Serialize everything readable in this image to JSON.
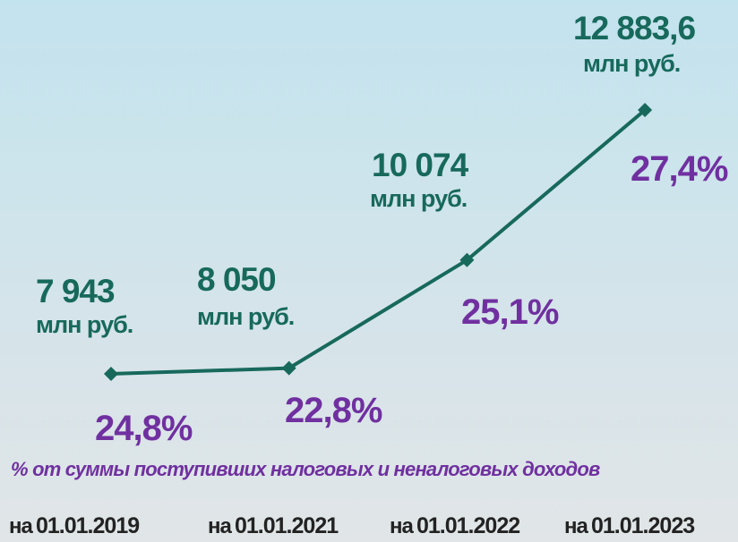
{
  "chart_data": {
    "type": "line",
    "category_prefix": "на",
    "categories": [
      "01.01.2019",
      "01.01.2021",
      "01.01.2022",
      "01.01.2023"
    ],
    "series": [
      {
        "color": "#17695c",
        "values": [
          7943,
          8050,
          10074,
          12883.6
        ],
        "value_labels": [
          "7 943",
          "8 050",
          "10 074",
          "12 883,6"
        ],
        "unit_label": "млн руб."
      }
    ],
    "shares": {
      "color": "#7030a0",
      "values": [
        24.8,
        22.8,
        25.1,
        27.4
      ],
      "value_labels": [
        "24,8%",
        "22,8%",
        "25,1%",
        "27,4%"
      ]
    },
    "subtitle": "% от  суммы поступивших налоговых  и неналоговых доходов"
  }
}
